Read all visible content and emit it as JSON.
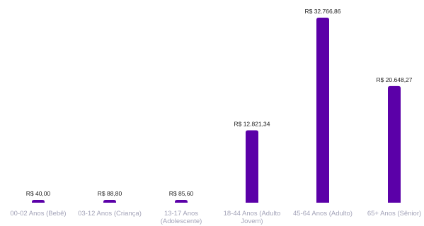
{
  "chart_data": {
    "type": "bar",
    "title": "",
    "xlabel": "",
    "ylabel": "",
    "grid": false,
    "legend": "none",
    "bar_color": "#5b00a8",
    "ylim": [
      0,
      33500
    ],
    "categories": [
      [
        "00-02 Anos (Bebê)"
      ],
      [
        "03-12 Anos (Criança)"
      ],
      [
        "13-17 Anos",
        "(Adolescente)"
      ],
      [
        "18-44 Anos (Adulto",
        "Jovem)"
      ],
      [
        "45-64 Anos (Adulto)"
      ],
      [
        "65+ Anos (Sênior)"
      ]
    ],
    "values": [
      40.0,
      88.8,
      85.6,
      12821.34,
      32766.86,
      20648.27
    ],
    "data_labels": [
      "R$ 40,00",
      "R$ 88,80",
      "R$ 85,60",
      "R$ 12.821,34",
      "R$ 32.766,86",
      "R$ 20.648,27"
    ]
  }
}
